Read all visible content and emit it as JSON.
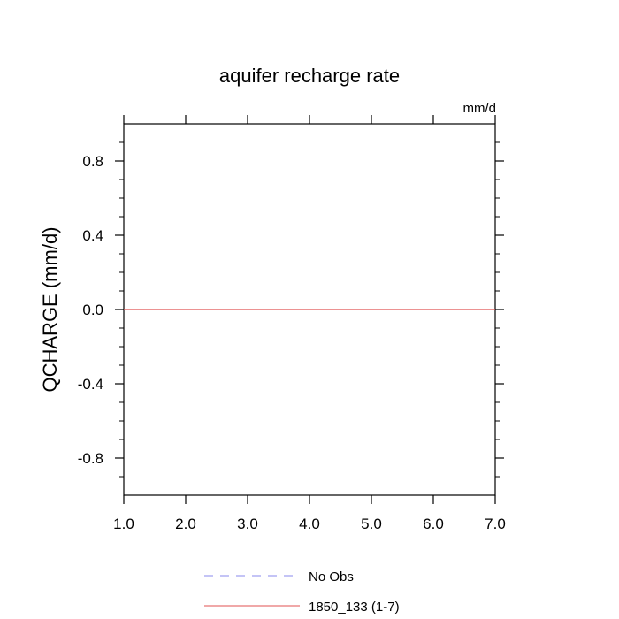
{
  "chart_data": {
    "type": "line",
    "title": "aquifer recharge rate",
    "units_label": "mm/d",
    "ylabel": "QCHARGE  (mm/d)",
    "xlabel": "",
    "xlim": [
      1.0,
      7.0
    ],
    "ylim": [
      -1.0,
      1.0
    ],
    "x_ticks": [
      "1.0",
      "2.0",
      "3.0",
      "4.0",
      "5.0",
      "6.0",
      "7.0"
    ],
    "y_ticks": [
      "0.8",
      "0.4",
      "0.0",
      "-0.4",
      "-0.8"
    ],
    "grid": false,
    "legend_position": "bottom",
    "series": [
      {
        "name": "No Obs",
        "style": "dashed",
        "color": "#8888ee",
        "x": [],
        "y": []
      },
      {
        "name": "1850_133 (1-7)",
        "style": "solid",
        "color": "#e05050",
        "x": [
          1,
          2,
          3,
          4,
          5,
          6,
          7
        ],
        "y": [
          0,
          0,
          0,
          0,
          0,
          0,
          0
        ]
      }
    ]
  }
}
